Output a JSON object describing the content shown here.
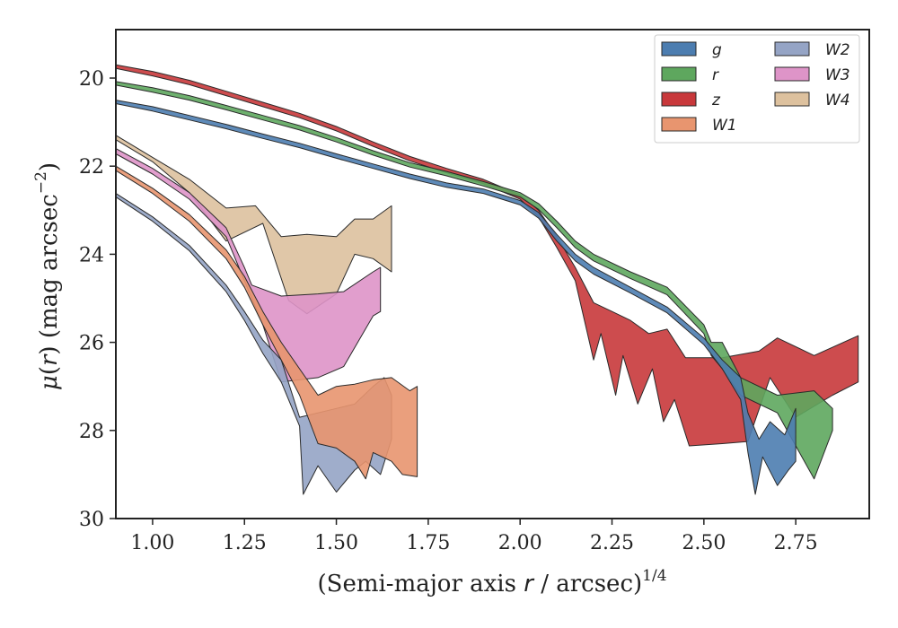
{
  "chart_data": {
    "type": "area",
    "xlabel": {
      "prefix": "(Semi-major axis ",
      "var": "r",
      "suffix": " / arcsec)",
      "exp": "1/4"
    },
    "ylabel": {
      "mu": "μ",
      "paren_open": "(",
      "var": "r",
      "paren_close": ")",
      "units": " (mag arcsec",
      "exp": "−2",
      "close": ")"
    },
    "xlim": [
      0.9,
      2.95
    ],
    "ylim": [
      30,
      18.9
    ],
    "y_inverted": true,
    "xticks": [
      1.0,
      1.25,
      1.5,
      1.75,
      2.0,
      2.25,
      2.5,
      2.75
    ],
    "xtick_labels": [
      "1.00",
      "1.25",
      "1.50",
      "1.75",
      "2.00",
      "2.25",
      "2.50",
      "2.75"
    ],
    "yticks": [
      20,
      22,
      24,
      26,
      28,
      30
    ],
    "ytick_labels": [
      "20",
      "22",
      "24",
      "26",
      "28",
      "30"
    ],
    "grid": false,
    "legend": {
      "placement": "top-right",
      "columns": 2
    },
    "series": [
      {
        "name": "g",
        "color": "#4C7DB0",
        "upper": [
          [
            0.9,
            20.5
          ],
          [
            1.0,
            20.65
          ],
          [
            1.1,
            20.85
          ],
          [
            1.2,
            21.05
          ],
          [
            1.3,
            21.27
          ],
          [
            1.4,
            21.48
          ],
          [
            1.5,
            21.72
          ],
          [
            1.6,
            21.95
          ],
          [
            1.7,
            22.18
          ],
          [
            1.8,
            22.38
          ],
          [
            1.9,
            22.52
          ],
          [
            2.0,
            22.78
          ],
          [
            2.05,
            23.05
          ],
          [
            2.1,
            23.55
          ],
          [
            2.15,
            24.0
          ],
          [
            2.2,
            24.3
          ],
          [
            2.3,
            24.75
          ],
          [
            2.4,
            25.2
          ],
          [
            2.5,
            25.9
          ],
          [
            2.55,
            26.4
          ],
          [
            2.6,
            26.8
          ],
          [
            2.62,
            27.6
          ],
          [
            2.65,
            28.2
          ],
          [
            2.68,
            27.8
          ],
          [
            2.72,
            28.1
          ],
          [
            2.75,
            27.5
          ]
        ],
        "lower": [
          [
            0.9,
            20.58
          ],
          [
            1.0,
            20.75
          ],
          [
            1.1,
            20.95
          ],
          [
            1.2,
            21.15
          ],
          [
            1.3,
            21.37
          ],
          [
            1.4,
            21.58
          ],
          [
            1.5,
            21.82
          ],
          [
            1.6,
            22.05
          ],
          [
            1.7,
            22.28
          ],
          [
            1.8,
            22.48
          ],
          [
            1.9,
            22.62
          ],
          [
            2.0,
            22.88
          ],
          [
            2.05,
            23.18
          ],
          [
            2.1,
            23.7
          ],
          [
            2.15,
            24.15
          ],
          [
            2.2,
            24.45
          ],
          [
            2.3,
            24.88
          ],
          [
            2.4,
            25.33
          ],
          [
            2.5,
            26.05
          ],
          [
            2.55,
            26.6
          ],
          [
            2.6,
            27.3
          ],
          [
            2.62,
            28.5
          ],
          [
            2.64,
            29.45
          ],
          [
            2.66,
            28.6
          ],
          [
            2.7,
            29.25
          ],
          [
            2.73,
            28.9
          ],
          [
            2.75,
            28.7
          ]
        ]
      },
      {
        "name": "r",
        "color": "#5EA75E",
        "upper": [
          [
            0.9,
            20.08
          ],
          [
            1.0,
            20.22
          ],
          [
            1.1,
            20.4
          ],
          [
            1.2,
            20.62
          ],
          [
            1.3,
            20.85
          ],
          [
            1.4,
            21.08
          ],
          [
            1.5,
            21.35
          ],
          [
            1.6,
            21.65
          ],
          [
            1.7,
            21.92
          ],
          [
            1.8,
            22.12
          ],
          [
            1.9,
            22.35
          ],
          [
            2.0,
            22.6
          ],
          [
            2.05,
            22.85
          ],
          [
            2.1,
            23.25
          ],
          [
            2.15,
            23.7
          ],
          [
            2.2,
            24.0
          ],
          [
            2.3,
            24.4
          ],
          [
            2.4,
            24.75
          ],
          [
            2.5,
            25.6
          ],
          [
            2.52,
            26.0
          ],
          [
            2.55,
            26.0
          ],
          [
            2.6,
            26.8
          ],
          [
            2.7,
            27.2
          ],
          [
            2.8,
            27.1
          ],
          [
            2.85,
            27.5
          ]
        ],
        "lower": [
          [
            0.9,
            20.16
          ],
          [
            1.0,
            20.32
          ],
          [
            1.1,
            20.5
          ],
          [
            1.2,
            20.72
          ],
          [
            1.3,
            20.95
          ],
          [
            1.4,
            21.18
          ],
          [
            1.5,
            21.45
          ],
          [
            1.6,
            21.75
          ],
          [
            1.7,
            22.02
          ],
          [
            1.8,
            22.22
          ],
          [
            1.9,
            22.45
          ],
          [
            2.0,
            22.7
          ],
          [
            2.05,
            22.98
          ],
          [
            2.1,
            23.4
          ],
          [
            2.15,
            23.85
          ],
          [
            2.2,
            24.15
          ],
          [
            2.3,
            24.55
          ],
          [
            2.4,
            24.92
          ],
          [
            2.5,
            25.8
          ],
          [
            2.52,
            26.3
          ],
          [
            2.55,
            26.6
          ],
          [
            2.6,
            27.2
          ],
          [
            2.7,
            27.6
          ],
          [
            2.8,
            29.1
          ],
          [
            2.85,
            28.0
          ]
        ]
      },
      {
        "name": "z",
        "color": "#C8383B",
        "upper": [
          [
            0.9,
            19.7
          ],
          [
            1.0,
            19.85
          ],
          [
            1.1,
            20.05
          ],
          [
            1.2,
            20.3
          ],
          [
            1.3,
            20.55
          ],
          [
            1.4,
            20.8
          ],
          [
            1.5,
            21.1
          ],
          [
            1.6,
            21.45
          ],
          [
            1.7,
            21.78
          ],
          [
            1.8,
            22.05
          ],
          [
            1.9,
            22.3
          ],
          [
            2.0,
            22.65
          ],
          [
            2.05,
            23.0
          ],
          [
            2.1,
            23.6
          ],
          [
            2.15,
            24.3
          ],
          [
            2.2,
            25.1
          ],
          [
            2.25,
            25.3
          ],
          [
            2.3,
            25.5
          ],
          [
            2.35,
            25.8
          ],
          [
            2.4,
            25.7
          ],
          [
            2.45,
            26.35
          ],
          [
            2.55,
            26.35
          ],
          [
            2.65,
            26.2
          ],
          [
            2.7,
            25.9
          ],
          [
            2.8,
            26.3
          ],
          [
            2.92,
            25.85
          ]
        ],
        "lower": [
          [
            0.9,
            19.78
          ],
          [
            1.0,
            19.95
          ],
          [
            1.1,
            20.15
          ],
          [
            1.2,
            20.4
          ],
          [
            1.3,
            20.65
          ],
          [
            1.4,
            20.9
          ],
          [
            1.5,
            21.2
          ],
          [
            1.6,
            21.55
          ],
          [
            1.7,
            21.88
          ],
          [
            1.8,
            22.15
          ],
          [
            1.9,
            22.4
          ],
          [
            2.0,
            22.75
          ],
          [
            2.05,
            23.15
          ],
          [
            2.1,
            23.85
          ],
          [
            2.15,
            24.6
          ],
          [
            2.2,
            26.4
          ],
          [
            2.22,
            25.8
          ],
          [
            2.26,
            27.2
          ],
          [
            2.28,
            26.3
          ],
          [
            2.32,
            27.4
          ],
          [
            2.36,
            26.6
          ],
          [
            2.39,
            27.8
          ],
          [
            2.42,
            27.3
          ],
          [
            2.46,
            28.35
          ],
          [
            2.55,
            28.3
          ],
          [
            2.62,
            28.25
          ],
          [
            2.68,
            26.8
          ],
          [
            2.75,
            27.7
          ],
          [
            2.85,
            27.2
          ],
          [
            2.92,
            26.9
          ]
        ]
      },
      {
        "name": "W1",
        "color": "#E8956F",
        "upper": [
          [
            0.9,
            22.0
          ],
          [
            1.0,
            22.5
          ],
          [
            1.1,
            23.1
          ],
          [
            1.2,
            23.9
          ],
          [
            1.25,
            24.5
          ],
          [
            1.3,
            25.3
          ],
          [
            1.35,
            26.0
          ],
          [
            1.4,
            26.6
          ],
          [
            1.45,
            27.2
          ],
          [
            1.5,
            27.0
          ],
          [
            1.55,
            26.95
          ],
          [
            1.6,
            26.85
          ],
          [
            1.65,
            26.8
          ],
          [
            1.7,
            27.1
          ],
          [
            1.72,
            27.0
          ]
        ],
        "lower": [
          [
            0.9,
            22.1
          ],
          [
            1.0,
            22.62
          ],
          [
            1.1,
            23.25
          ],
          [
            1.2,
            24.1
          ],
          [
            1.25,
            24.75
          ],
          [
            1.3,
            25.6
          ],
          [
            1.35,
            26.4
          ],
          [
            1.4,
            27.2
          ],
          [
            1.45,
            28.3
          ],
          [
            1.5,
            28.4
          ],
          [
            1.55,
            28.7
          ],
          [
            1.58,
            29.1
          ],
          [
            1.6,
            28.5
          ],
          [
            1.65,
            28.7
          ],
          [
            1.68,
            29.0
          ],
          [
            1.72,
            29.05
          ]
        ]
      },
      {
        "name": "W2",
        "color": "#95A4C5",
        "upper": [
          [
            0.9,
            22.62
          ],
          [
            1.0,
            23.15
          ],
          [
            1.1,
            23.8
          ],
          [
            1.2,
            24.7
          ],
          [
            1.25,
            25.3
          ],
          [
            1.3,
            25.95
          ],
          [
            1.35,
            26.4
          ],
          [
            1.4,
            27.7
          ],
          [
            1.45,
            27.6
          ],
          [
            1.5,
            27.5
          ],
          [
            1.55,
            27.4
          ],
          [
            1.6,
            27.0
          ],
          [
            1.63,
            26.8
          ],
          [
            1.65,
            27.2
          ]
        ],
        "lower": [
          [
            0.9,
            22.7
          ],
          [
            1.0,
            23.25
          ],
          [
            1.1,
            23.92
          ],
          [
            1.2,
            24.85
          ],
          [
            1.25,
            25.5
          ],
          [
            1.3,
            26.25
          ],
          [
            1.35,
            26.9
          ],
          [
            1.4,
            27.9
          ],
          [
            1.41,
            29.45
          ],
          [
            1.45,
            28.8
          ],
          [
            1.5,
            29.4
          ],
          [
            1.55,
            28.9
          ],
          [
            1.58,
            28.7
          ],
          [
            1.62,
            29.0
          ],
          [
            1.65,
            28.2
          ]
        ]
      },
      {
        "name": "W3",
        "color": "#DE94C8",
        "upper": [
          [
            0.9,
            21.6
          ],
          [
            1.0,
            22.05
          ],
          [
            1.1,
            22.6
          ],
          [
            1.2,
            23.4
          ],
          [
            1.25,
            24.3
          ],
          [
            1.27,
            24.7
          ],
          [
            1.35,
            24.95
          ],
          [
            1.45,
            24.9
          ],
          [
            1.52,
            24.85
          ],
          [
            1.6,
            24.4
          ],
          [
            1.62,
            24.3
          ]
        ],
        "lower": [
          [
            0.9,
            21.72
          ],
          [
            1.0,
            22.18
          ],
          [
            1.1,
            22.75
          ],
          [
            1.2,
            23.6
          ],
          [
            1.25,
            24.6
          ],
          [
            1.3,
            25.6
          ],
          [
            1.35,
            26.9
          ],
          [
            1.45,
            26.8
          ],
          [
            1.52,
            26.55
          ],
          [
            1.6,
            25.4
          ],
          [
            1.62,
            25.3
          ]
        ]
      },
      {
        "name": "W4",
        "color": "#DDC19E",
        "upper": [
          [
            0.9,
            21.3
          ],
          [
            1.0,
            21.8
          ],
          [
            1.1,
            22.3
          ],
          [
            1.2,
            22.95
          ],
          [
            1.28,
            22.9
          ],
          [
            1.35,
            23.6
          ],
          [
            1.42,
            23.55
          ],
          [
            1.5,
            23.6
          ],
          [
            1.55,
            23.2
          ],
          [
            1.6,
            23.2
          ],
          [
            1.65,
            22.9
          ]
        ],
        "lower": [
          [
            0.9,
            21.4
          ],
          [
            1.0,
            21.9
          ],
          [
            1.1,
            22.6
          ],
          [
            1.2,
            23.7
          ],
          [
            1.3,
            23.3
          ],
          [
            1.37,
            25.05
          ],
          [
            1.42,
            25.35
          ],
          [
            1.5,
            24.9
          ],
          [
            1.55,
            24.0
          ],
          [
            1.6,
            24.1
          ],
          [
            1.65,
            24.4
          ]
        ]
      }
    ]
  }
}
